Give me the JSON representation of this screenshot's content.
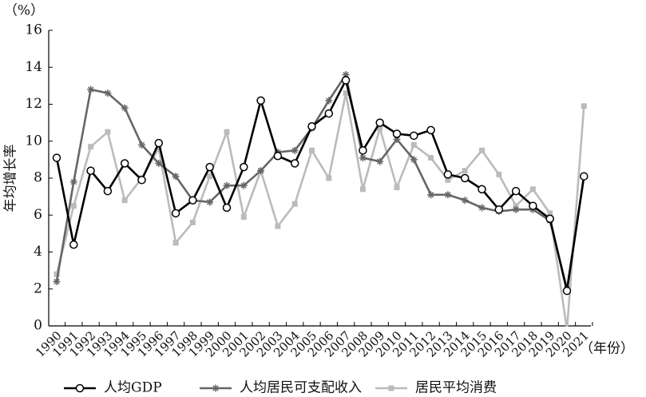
{
  "chart_data": {
    "type": "line",
    "y_unit": "（%）",
    "x_unit": "（年份）",
    "ylabel": "年均增长率",
    "categories": [
      "1990",
      "1991",
      "1992",
      "1993",
      "1994",
      "1995",
      "1996",
      "1997",
      "1998",
      "1999",
      "2000",
      "2001",
      "2002",
      "2003",
      "2004",
      "2005",
      "2006",
      "2007",
      "2008",
      "2009",
      "2010",
      "2011",
      "2012",
      "2013",
      "2014",
      "2015",
      "2016",
      "2017",
      "2018",
      "2019",
      "2020",
      "2021"
    ],
    "series": [
      {
        "name": "人均GDP",
        "color": "#000000",
        "marker": "circle",
        "values": [
          9.1,
          4.4,
          8.4,
          7.3,
          8.8,
          7.9,
          9.9,
          6.1,
          6.8,
          8.6,
          6.4,
          8.6,
          12.2,
          9.2,
          8.8,
          10.8,
          11.5,
          13.3,
          9.5,
          11.0,
          10.4,
          10.3,
          10.6,
          8.2,
          8.0,
          7.4,
          6.3,
          7.3,
          6.5,
          5.8,
          1.9,
          8.1
        ]
      },
      {
        "name": "人均居民可支配收入",
        "color": "#666666",
        "marker": "asterisk",
        "values": [
          2.4,
          7.8,
          12.8,
          12.6,
          11.8,
          9.8,
          8.8,
          8.1,
          6.8,
          6.7,
          7.6,
          7.6,
          8.4,
          9.4,
          9.5,
          10.7,
          12.2,
          13.6,
          9.1,
          8.9,
          10.1,
          9.0,
          7.1,
          7.1,
          6.8,
          6.4,
          6.2,
          6.3,
          6.3,
          5.7,
          2.0,
          8.1
        ]
      },
      {
        "name": "居民平均消费",
        "color": "#bbbbbb",
        "marker": "square",
        "values": [
          2.8,
          6.5,
          9.7,
          10.5,
          6.8,
          8.0,
          9.6,
          4.5,
          5.6,
          8.1,
          10.5,
          5.9,
          8.4,
          5.4,
          6.6,
          9.5,
          8.0,
          12.6,
          7.4,
          10.7,
          7.5,
          9.8,
          9.1,
          7.9,
          8.4,
          9.5,
          8.2,
          6.5,
          7.4,
          6.1,
          -0.2,
          11.9
        ]
      }
    ],
    "ylim": [
      0,
      16
    ],
    "yticks": [
      0,
      2,
      4,
      6,
      8,
      10,
      12,
      14,
      16
    ]
  }
}
